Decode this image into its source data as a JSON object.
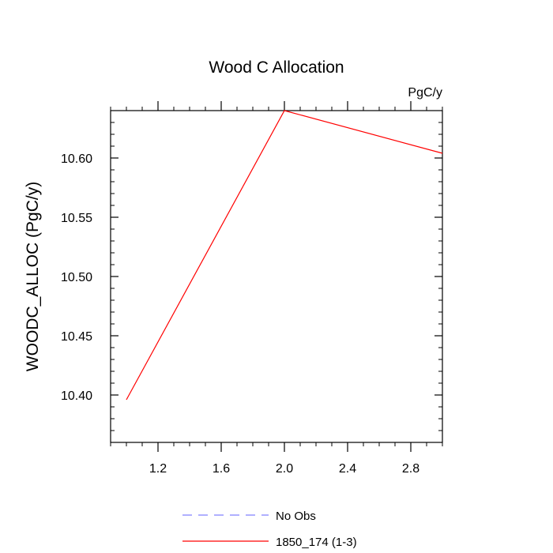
{
  "chart_data": {
    "type": "line",
    "title": "Wood C Allocation",
    "units_label": "PgC/y",
    "xlabel": "",
    "ylabel": "WOODC_ALLOC  (PgC/y)",
    "xlim": [
      0.9,
      3.0
    ],
    "ylim": [
      10.36,
      10.64
    ],
    "x_ticks": [
      1.2,
      1.6,
      2.0,
      2.4,
      2.8
    ],
    "x_tick_labels": [
      "1.2",
      "1.6",
      "2.0",
      "2.4",
      "2.8"
    ],
    "y_ticks": [
      10.4,
      10.45,
      10.5,
      10.55,
      10.6
    ],
    "y_tick_labels": [
      "10.40",
      "10.45",
      "10.50",
      "10.55",
      "10.60"
    ],
    "grid": false,
    "legend_position": "bottom-center",
    "series": [
      {
        "name": "No Obs",
        "color": "#8080ff",
        "dash": "dashed",
        "x": [],
        "y": []
      },
      {
        "name": "1850_174 (1-3)",
        "color": "#ff0000",
        "dash": "solid",
        "x": [
          1.0,
          2.0,
          3.0
        ],
        "y": [
          10.396,
          10.64,
          10.604
        ]
      }
    ]
  }
}
